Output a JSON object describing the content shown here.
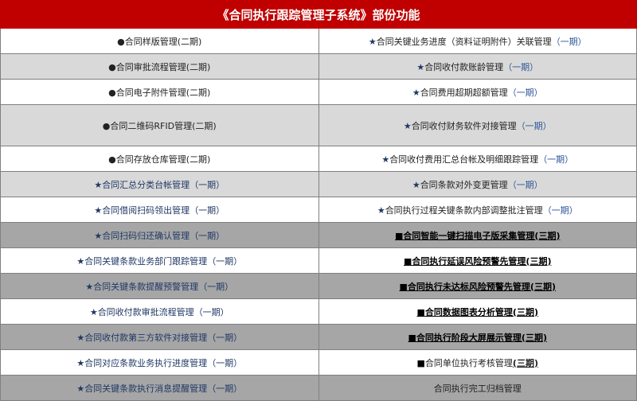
{
  "title": "《合同执行跟踪管理子系统》部份功能",
  "colors": {
    "header": "#c00000",
    "light_row": "#d9d9d9",
    "dark_row": "#a6a6a6",
    "navy": "#1f3864"
  },
  "rows": [
    {
      "bg": "w",
      "left": {
        "mark": "●",
        "text": "合同样版管理",
        "phase": "(二期)"
      },
      "right": {
        "mark": "★",
        "text": "合同关键业务进度（资料证明附件）关联管理",
        "phase": "（一期）"
      }
    },
    {
      "bg": "l",
      "left": {
        "mark": "●",
        "text": "合同审批流程管理",
        "phase": "(二期)"
      },
      "right": {
        "mark": "★",
        "text": "合同收付款账龄管理",
        "phase": "（一期）"
      }
    },
    {
      "bg": "w",
      "left": {
        "mark": "●",
        "text": "合同电子附件管理",
        "phase": "(二期)"
      },
      "right": {
        "mark": "★",
        "text": "合同费用超期超额管理",
        "phase": "（一期）"
      }
    },
    {
      "bg": "l",
      "tall": true,
      "left": {
        "mark": "●",
        "text": "合同二维码RFID管理",
        "phase": "(二期)"
      },
      "right": {
        "mark": "★",
        "text": "合同收付财务软件对接管理",
        "phase": "（一期）"
      }
    },
    {
      "bg": "w",
      "left": {
        "mark": "●",
        "text": "合同存放仓库管理",
        "phase": "(二期)"
      },
      "right": {
        "mark": "★",
        "text": "合同收付费用汇总台帐及明细跟踪管理",
        "phase": "（一期）"
      }
    },
    {
      "bg": "l",
      "left": {
        "mark": "★",
        "text": "合同汇总分类台帐管理",
        "phase": "（一期）"
      },
      "right": {
        "mark": "★",
        "text": "合同条款对外变更管理",
        "phase": "（一期）"
      }
    },
    {
      "bg": "w",
      "left": {
        "mark": "★",
        "text": "合同借阅扫码领出管理",
        "phase": "（一期）"
      },
      "right": {
        "mark": "★",
        "text": "合同执行过程关键条款内部调整批注管理",
        "phase": "（一期）"
      }
    },
    {
      "bg": "d",
      "left": {
        "mark": "★",
        "text": "合同扫码归还确认管理",
        "phase": "（一期）"
      },
      "right": {
        "mark": "■",
        "text": "合同智能一键扫描电子版采集管理",
        "phase": "(三期)"
      }
    },
    {
      "bg": "w",
      "left": {
        "mark": "★",
        "text": "合同关键条款业务部门跟踪管理",
        "phase": "（一期）"
      },
      "right": {
        "mark": "■",
        "text": "合同执行延误风险预警先管理",
        "phase": "(三期)"
      }
    },
    {
      "bg": "d",
      "left": {
        "mark": "★",
        "text": "合同关键条款提醒预警管理",
        "phase": "（一期）"
      },
      "right": {
        "mark": "■",
        "text": "合同执行未达标风险预警先管理",
        "phase": "(三期)"
      }
    },
    {
      "bg": "w",
      "left": {
        "mark": "★",
        "text": "合同收付款审批流程管理",
        "phase": "（一期）"
      },
      "right": {
        "mark": "■",
        "text": "合同数据图表分析管理",
        "phase": "(三期)"
      }
    },
    {
      "bg": "d",
      "left": {
        "mark": "★",
        "text": "合同收付款第三方软件对接管理",
        "phase": "（一期）"
      },
      "right": {
        "mark": "■",
        "text": "合同执行阶段大屏展示管理",
        "phase": "(三期)"
      }
    },
    {
      "bg": "w",
      "left": {
        "mark": "★",
        "text": "合同对应条款业务执行进度管理",
        "phase": "（一期）"
      },
      "right": {
        "mark": "■",
        "text": "合同单位执行考核管理",
        "phase": "(三期)",
        "plain": true
      }
    },
    {
      "bg": "d",
      "left": {
        "mark": "★",
        "text": "合同关键条款执行消息提醒管理",
        "phase": "（一期）"
      },
      "right": {
        "mark": "",
        "text": "合同执行完工归档管理",
        "phase": "",
        "plain": true
      }
    }
  ]
}
